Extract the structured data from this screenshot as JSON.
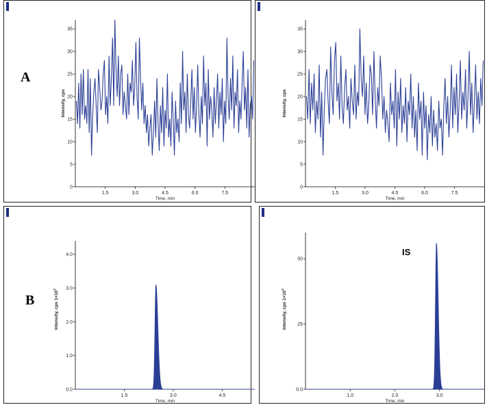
{
  "figure_labels": {
    "a": "A",
    "b": "B"
  },
  "chart_data": [
    {
      "id": "A-left",
      "type": "line",
      "xlabel": "Time, min",
      "ylabel": "Intensity, cps",
      "xlim": [
        0,
        9.0
      ],
      "ylim": [
        0,
        37
      ],
      "xticks": [
        "1.5",
        "3.0",
        "4.5",
        "6.0",
        "7.5"
      ],
      "xtick_values": [
        1.5,
        3.0,
        4.5,
        6.0,
        7.5
      ],
      "yticks": [
        "0",
        "5",
        "10",
        "15",
        "20",
        "25",
        "30",
        "35"
      ],
      "ytick_values": [
        0,
        5,
        10,
        15,
        20,
        25,
        30,
        35
      ],
      "series": [
        {
          "x_start": 0.05,
          "x_end": 8.95,
          "values": [
            19,
            14,
            23,
            13,
            25,
            16,
            26,
            15,
            18,
            14,
            26,
            12,
            24,
            7,
            16,
            21,
            24,
            18,
            12,
            26,
            22,
            17,
            19,
            25,
            28,
            16,
            20,
            14,
            29,
            18,
            24,
            33,
            18,
            37,
            26,
            20,
            29,
            18,
            25,
            27,
            16,
            21,
            18,
            15,
            25,
            16,
            23,
            21,
            28,
            18,
            22,
            32,
            20,
            15,
            33,
            24,
            17,
            23,
            14,
            18,
            12,
            16,
            9,
            13,
            16,
            7,
            12,
            19,
            11,
            24,
            14,
            8,
            18,
            12,
            22,
            9,
            17,
            13,
            25,
            11,
            15,
            9,
            21,
            15,
            7,
            19,
            12,
            15,
            10,
            23,
            14,
            30,
            17,
            21,
            12,
            25,
            16,
            13,
            19,
            26,
            15,
            22,
            12,
            18,
            27,
            16,
            11,
            20,
            14,
            29,
            18,
            23,
            9,
            26,
            15,
            20,
            17,
            11,
            22,
            14,
            19,
            25,
            13,
            21,
            16,
            24,
            10,
            19,
            14,
            33,
            20,
            15,
            24,
            17,
            29,
            13,
            21,
            18,
            26,
            12,
            19,
            15,
            23,
            30,
            17,
            22,
            13,
            26,
            11,
            18,
            20,
            15,
            28
          ]
        }
      ]
    },
    {
      "id": "A-right",
      "type": "line",
      "xlabel": "Time, min",
      "ylabel": "Intensity, cps",
      "xlim": [
        0,
        9.0
      ],
      "ylim": [
        0,
        37
      ],
      "xticks": [
        "1.5",
        "3.0",
        "4.5",
        "6.0",
        "7.5"
      ],
      "xtick_values": [
        1.5,
        3.0,
        4.5,
        6.0,
        7.5
      ],
      "yticks": [
        "0",
        "5",
        "10",
        "15",
        "20",
        "25",
        "30",
        "35"
      ],
      "ytick_values": [
        0,
        5,
        10,
        15,
        20,
        25,
        30,
        35
      ],
      "series": [
        {
          "x_start": 0.05,
          "x_end": 8.95,
          "values": [
            20,
            15,
            26,
            14,
            23,
            17,
            25,
            12,
            19,
            15,
            27,
            11,
            21,
            7,
            17,
            24,
            26,
            19,
            14,
            31,
            21,
            16,
            28,
            32,
            19,
            23,
            15,
            29,
            18,
            14,
            22,
            26,
            17,
            20,
            13,
            24,
            19,
            16,
            27,
            15,
            21,
            18,
            35,
            24,
            20,
            29,
            16,
            23,
            14,
            18,
            27,
            25,
            16,
            30,
            20,
            13,
            22,
            18,
            29,
            24,
            15,
            20,
            12,
            17,
            14,
            10,
            23,
            16,
            19,
            13,
            26,
            9,
            21,
            15,
            24,
            12,
            18,
            14,
            22,
            10,
            19,
            16,
            25,
            13,
            20,
            11,
            17,
            8,
            23,
            15,
            19,
            7,
            21,
            13,
            18,
            6,
            16,
            12,
            20,
            9,
            17,
            11,
            14,
            8,
            19,
            13,
            15,
            7,
            18,
            24,
            14,
            20,
            11,
            17,
            27,
            13,
            22,
            16,
            25,
            12,
            19,
            28,
            15,
            21,
            17,
            26,
            13,
            20,
            30,
            16,
            23,
            12,
            19,
            27,
            15,
            21,
            14,
            24,
            18,
            28
          ]
        }
      ]
    },
    {
      "id": "B-left",
      "type": "area",
      "xlabel": "Time, min",
      "ylabel": "Intensity, cps 1×10",
      "ylabel_sup": "3",
      "xlim": [
        0,
        5.5
      ],
      "ylim": [
        0,
        4.4
      ],
      "xticks": [
        "1.5",
        "3.0",
        "4.5"
      ],
      "xtick_values": [
        1.5,
        3.0,
        4.5
      ],
      "yticks": [
        "0.0",
        "1.0",
        "2.0",
        "3.0",
        "4.0"
      ],
      "ytick_values": [
        0,
        1,
        2,
        3,
        4
      ],
      "peak": {
        "center": 2.47,
        "height": 3.1,
        "width_left": 0.03,
        "width_right": 0.06
      }
    },
    {
      "id": "B-right",
      "type": "area",
      "xlabel": "Time, min",
      "ylabel": "Intensity, cps 1×10",
      "ylabel_sup": "3",
      "xlim": [
        0,
        4.0
      ],
      "ylim": [
        0,
        60
      ],
      "xticks": [
        "1.0",
        "2.0",
        "3.0"
      ],
      "xtick_values": [
        1.0,
        2.0,
        3.0
      ],
      "yticks": [
        "0.0",
        "25",
        "50"
      ],
      "ytick_values": [
        0,
        25,
        50
      ],
      "annotation": "IS",
      "peak": {
        "center": 2.93,
        "height": 56,
        "width_left": 0.022,
        "width_right": 0.04
      }
    }
  ]
}
